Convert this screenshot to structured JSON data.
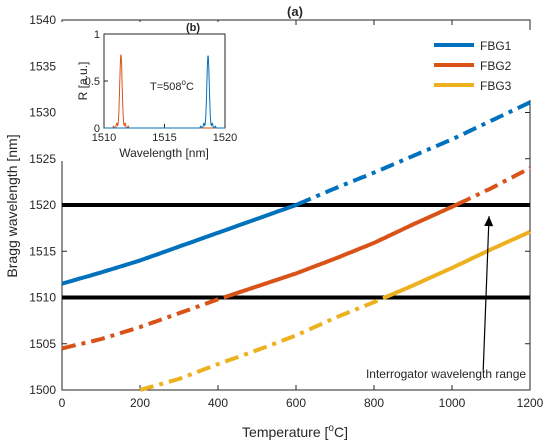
{
  "chart_data": [
    {
      "type": "line",
      "title": "(a)",
      "xlabel": "Temperature [",
      "xlabel_unit_sup": "o",
      "xlabel_unit_tail": "C]",
      "ylabel": "Bragg wavelength [nm]",
      "xlim": [
        0,
        1200
      ],
      "ylim": [
        1500,
        1540
      ],
      "xticks": [
        0,
        200,
        400,
        600,
        800,
        1000,
        1200
      ],
      "yticks": [
        1500,
        1505,
        1510,
        1515,
        1520,
        1525,
        1530,
        1535,
        1540
      ],
      "grid": false,
      "legend_position": "top-right",
      "series": [
        {
          "name": "FBG1",
          "color": "#0072BD",
          "x": [
            0,
            100,
            200,
            300,
            400,
            500,
            600,
            700,
            800,
            900,
            1000,
            1100,
            1200
          ],
          "y": [
            1511.5,
            1512.7,
            1514.0,
            1515.5,
            1517.0,
            1518.5,
            1520.0,
            1521.8,
            1523.5,
            1525.3,
            1527.1,
            1529.1,
            1531.1
          ],
          "solid_range_y": [
            1510,
            1520
          ]
        },
        {
          "name": "FBG2",
          "color": "#D95319",
          "x": [
            0,
            100,
            200,
            300,
            400,
            500,
            600,
            700,
            800,
            900,
            1000,
            1100,
            1200
          ],
          "y": [
            1504.5,
            1505.5,
            1506.8,
            1508.3,
            1509.8,
            1511.2,
            1512.6,
            1514.2,
            1515.9,
            1517.9,
            1519.8,
            1521.8,
            1524.0
          ],
          "solid_range_y": [
            1510,
            1520
          ]
        },
        {
          "name": "FBG3",
          "color": "#EDB120",
          "x": [
            200,
            300,
            400,
            500,
            600,
            700,
            800,
            900,
            1000,
            1100,
            1200
          ],
          "y": [
            1500.0,
            1501.2,
            1502.8,
            1504.3,
            1505.9,
            1507.8,
            1509.5,
            1511.3,
            1513.2,
            1515.2,
            1517.1
          ],
          "solid_range_y": [
            1510,
            1520
          ]
        }
      ],
      "hlines": [
        1510,
        1520
      ],
      "annotation": {
        "text": "Interrogator wavelength range",
        "arrow_from": [
          1080,
          1502.1
        ],
        "arrow_to": [
          1095,
          1518.8
        ]
      }
    },
    {
      "type": "line",
      "title": "(b)",
      "xlabel": "Wavelength [nm]",
      "ylabel": "R [a.u.]",
      "xlim": [
        1510,
        1520
      ],
      "ylim": [
        0,
        1
      ],
      "xticks": [
        1510,
        1515,
        1520
      ],
      "yticks": [
        0,
        0.5,
        1
      ],
      "annotation_text": "T=508",
      "annotation_sup": "o",
      "annotation_tail": "C",
      "peaks": [
        {
          "color": "#D95319",
          "center": 1511.4,
          "height": 0.78,
          "width": 0.14
        },
        {
          "color": "#0072BD",
          "center": 1518.6,
          "height": 0.77,
          "width": 0.14
        }
      ]
    }
  ]
}
